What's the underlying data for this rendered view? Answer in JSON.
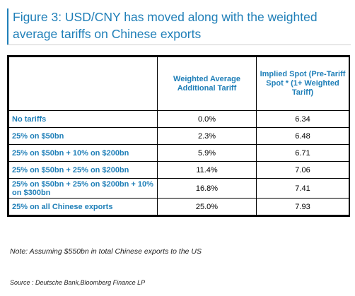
{
  "title": {
    "line1": "Figure 3: USD/CNY has moved along with the weighted",
    "line2": "average tariffs on Chinese exports"
  },
  "table": {
    "headers": [
      "",
      "Weighted Average Additional Tariff",
      "Implied Spot (Pre-Tariff Spot * (1+ Weighted Tariff)"
    ],
    "rows": [
      {
        "label": "No tariffs",
        "tariff": "0.0%",
        "spot": "6.34"
      },
      {
        "label": "25% on $50bn",
        "tariff": "2.3%",
        "spot": "6.48"
      },
      {
        "label": "25% on $50bn + 10% on $200bn",
        "tariff": "5.9%",
        "spot": "6.71"
      },
      {
        "label": "25% on $50bn + 25% on $200bn",
        "tariff": "11.4%",
        "spot": "7.06"
      },
      {
        "label": "25% on $50bn + 25% on $200bn + 10% on $300bn",
        "tariff": "16.8%",
        "spot": "7.41"
      },
      {
        "label": "25% on all Chinese exports",
        "tariff": "25.0%",
        "spot": "7.93"
      }
    ]
  },
  "note": "Note: Assuming $550bn in total Chinese exports to the US",
  "source": "Source : Deutsche Bank,Bloomberg Finance LP",
  "colors": {
    "accent": "#1f7fb8",
    "border": "#000000"
  }
}
